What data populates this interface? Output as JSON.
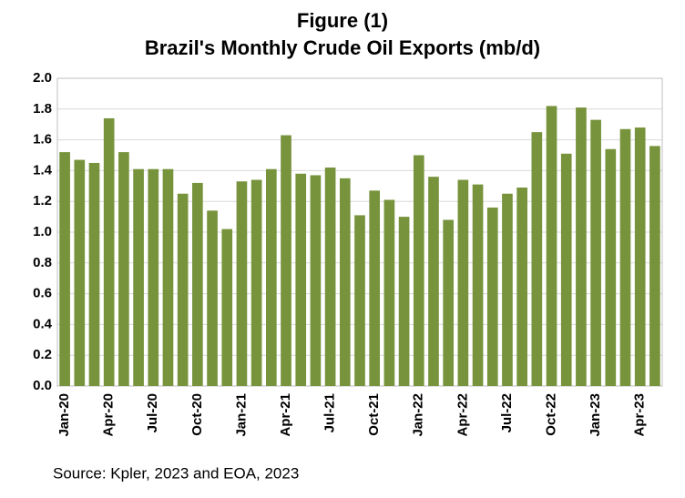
{
  "chart_data": {
    "type": "bar",
    "title": "Figure (1)",
    "subtitle": "Brazil's Monthly Crude Oil Exports (mb/d)",
    "source": "Source: Kpler, 2023 and EOA, 2023",
    "categories": [
      "Jan-20",
      null,
      null,
      "Apr-20",
      null,
      null,
      "Jul-20",
      null,
      null,
      "Oct-20",
      null,
      null,
      "Jan-21",
      null,
      null,
      "Apr-21",
      null,
      null,
      "Jul-21",
      null,
      null,
      "Oct-21",
      null,
      null,
      "Jan-22",
      null,
      null,
      "Apr-22",
      null,
      null,
      "Jul-22",
      null,
      null,
      "Oct-22",
      null,
      null,
      "Jan-23",
      null,
      null,
      "Apr-23",
      null
    ],
    "values": [
      1.52,
      1.47,
      1.45,
      1.74,
      1.52,
      1.41,
      1.41,
      1.41,
      1.25,
      1.32,
      1.14,
      1.02,
      1.33,
      1.34,
      1.41,
      1.63,
      1.38,
      1.37,
      1.42,
      1.35,
      1.11,
      1.27,
      1.21,
      1.1,
      1.5,
      1.36,
      1.08,
      1.34,
      1.31,
      1.16,
      1.25,
      1.29,
      1.65,
      1.82,
      1.51,
      1.81,
      1.73,
      1.54,
      1.67,
      1.68,
      1.56
    ],
    "color": "#77933c",
    "ylim": [
      0,
      2
    ],
    "yticks": [
      {
        "value": 0,
        "label": "0.0"
      },
      0.2,
      0.4,
      0.6,
      0.8,
      {
        "value": 1,
        "label": "1.0"
      },
      1.2,
      1.4,
      1.6,
      1.8,
      {
        "value": 2,
        "label": "2.0"
      }
    ],
    "grid": true
  }
}
